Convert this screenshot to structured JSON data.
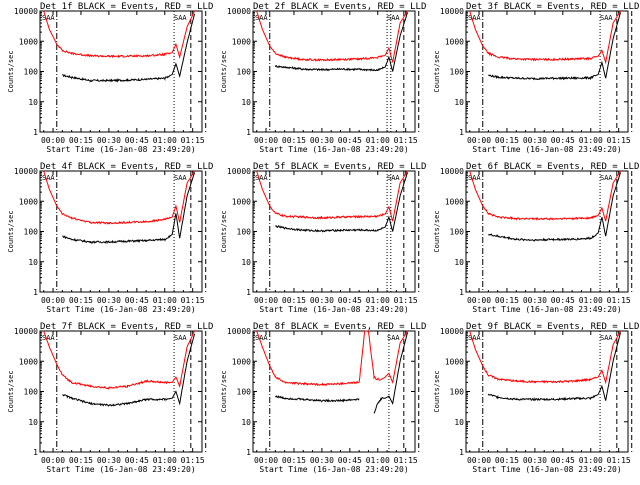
{
  "colors": {
    "events": "#000000",
    "lld": "#ff0000",
    "axis": "#000000"
  },
  "chart_data": [
    {
      "type": "line",
      "title": "Det 1f BLACK = Events, RED = LLD",
      "xlabel": "Start Time (16-Jan-08 23:49:20)",
      "ylabel": "Counts/sec",
      "yscale": "log",
      "ylim": [
        1,
        10000
      ],
      "xticks": [
        "00:00",
        "00:15",
        "00:30",
        "00:45",
        "01:00",
        "01:15"
      ],
      "yticks": [
        "1",
        "10",
        "100",
        "1000",
        "10000"
      ],
      "x": [
        -5,
        -2,
        2,
        5,
        10,
        20,
        30,
        40,
        50,
        60,
        64,
        66,
        68,
        72,
        76
      ],
      "series": [
        {
          "name": "BLACK = Events",
          "values": [
            null,
            null,
            null,
            75,
            65,
            50,
            50,
            52,
            55,
            60,
            80,
            180,
            70,
            900,
            8000
          ]
        },
        {
          "name": "RED = LLD",
          "values": [
            10000,
            2500,
            800,
            500,
            400,
            330,
            320,
            320,
            330,
            370,
            420,
            800,
            300,
            3000,
            10000
          ]
        }
      ],
      "markers": {
        "dashdot": [
          2
        ],
        "dotted": [
          65
        ],
        "dashed": [
          74,
          82
        ],
        "saa_labels": [
          "SAA",
          "SAA"
        ]
      }
    },
    {
      "type": "line",
      "title": "Det 2f BLACK = Events, RED = LLD",
      "xlabel": "Start Time (16-Jan-08 23:49:20)",
      "ylabel": "Counts/sec",
      "yscale": "log",
      "ylim": [
        1,
        10000
      ],
      "xticks": [
        "00:00",
        "00:15",
        "00:30",
        "00:45",
        "01:00",
        "01:15"
      ],
      "yticks": [
        "1",
        "10",
        "100",
        "1000",
        "10000"
      ],
      "x": [
        -5,
        -2,
        2,
        5,
        10,
        20,
        30,
        40,
        50,
        60,
        64,
        66,
        68,
        72,
        76
      ],
      "series": [
        {
          "name": "BLACK = Events",
          "values": [
            null,
            null,
            null,
            150,
            140,
            120,
            115,
            120,
            118,
            110,
            140,
            300,
            100,
            1500,
            9000
          ]
        },
        {
          "name": "RED = LLD",
          "values": [
            10000,
            2500,
            700,
            400,
            300,
            250,
            240,
            250,
            260,
            290,
            340,
            600,
            200,
            4000,
            10000
          ]
        }
      ],
      "markers": {
        "dashdot": [
          2
        ],
        "dotted": [
          65,
          67
        ],
        "dashed": [
          74,
          82
        ],
        "saa_labels": [
          "SAA",
          "SAA"
        ]
      }
    },
    {
      "type": "line",
      "title": "Det 3f BLACK = Events, RED = LLD",
      "xlabel": "Start Time (16-Jan-08 23:49:20)",
      "ylabel": "Counts/sec",
      "yscale": "log",
      "ylim": [
        1,
        10000
      ],
      "xticks": [
        "00:00",
        "00:15",
        "00:30",
        "00:45",
        "01:00",
        "01:15"
      ],
      "yticks": [
        "1",
        "10",
        "100",
        "1000",
        "10000"
      ],
      "x": [
        -5,
        -2,
        2,
        5,
        10,
        20,
        30,
        40,
        50,
        60,
        64,
        66,
        68,
        72,
        76
      ],
      "series": [
        {
          "name": "BLACK = Events",
          "values": [
            null,
            null,
            null,
            75,
            65,
            60,
            58,
            60,
            60,
            62,
            80,
            200,
            60,
            1200,
            9000
          ]
        },
        {
          "name": "RED = LLD",
          "values": [
            10000,
            2500,
            700,
            400,
            300,
            260,
            250,
            250,
            260,
            270,
            320,
            500,
            200,
            4000,
            10000
          ]
        }
      ],
      "markers": {
        "dashdot": [
          2
        ],
        "dotted": [
          65
        ],
        "dashed": [
          74,
          82
        ],
        "saa_labels": [
          "SAA",
          "SAA"
        ]
      }
    },
    {
      "type": "line",
      "title": "Det 4f BLACK = Events, RED = LLD",
      "xlabel": "Start Time (16-Jan-08 23:49:20)",
      "ylabel": "Counts/sec",
      "yscale": "log",
      "ylim": [
        1,
        10000
      ],
      "xticks": [
        "00:00",
        "00:15",
        "00:30",
        "00:45",
        "01:00",
        "01:15"
      ],
      "yticks": [
        "1",
        "10",
        "100",
        "1000",
        "10000"
      ],
      "x": [
        -5,
        -2,
        2,
        5,
        10,
        20,
        30,
        40,
        50,
        60,
        64,
        66,
        68,
        72,
        76
      ],
      "series": [
        {
          "name": "BLACK = Events",
          "values": [
            null,
            null,
            null,
            70,
            55,
            45,
            45,
            48,
            50,
            55,
            80,
            400,
            60,
            1500,
            9000
          ]
        },
        {
          "name": "RED = LLD",
          "values": [
            10000,
            2500,
            700,
            380,
            280,
            200,
            190,
            200,
            210,
            250,
            300,
            700,
            200,
            4000,
            10000
          ]
        }
      ],
      "markers": {
        "dashdot": [
          2
        ],
        "dotted": [
          65
        ],
        "dashed": [
          74,
          82
        ],
        "saa_labels": [
          "SAA",
          "SAA"
        ]
      }
    },
    {
      "type": "line",
      "title": "Det 5f BLACK = Events, RED = LLD",
      "xlabel": "Start Time (16-Jan-08 23:49:20)",
      "ylabel": "Counts/sec",
      "yscale": "log",
      "ylim": [
        1,
        10000
      ],
      "xticks": [
        "00:00",
        "00:15",
        "00:30",
        "00:45",
        "01:00",
        "01:15"
      ],
      "yticks": [
        "1",
        "10",
        "100",
        "1000",
        "10000"
      ],
      "x": [
        -5,
        -2,
        2,
        5,
        10,
        20,
        30,
        40,
        50,
        60,
        64,
        66,
        68,
        72,
        76
      ],
      "series": [
        {
          "name": "BLACK = Events",
          "values": [
            null,
            null,
            null,
            150,
            130,
            110,
            105,
            110,
            112,
            108,
            140,
            300,
            100,
            1500,
            9000
          ]
        },
        {
          "name": "RED = LLD",
          "values": [
            10000,
            2500,
            700,
            400,
            320,
            300,
            280,
            300,
            310,
            320,
            380,
            650,
            220,
            4000,
            10000
          ]
        }
      ],
      "markers": {
        "dashdot": [
          2
        ],
        "dotted": [
          65,
          67
        ],
        "dashed": [
          74,
          82
        ],
        "saa_labels": [
          "SAA",
          "SAA"
        ]
      }
    },
    {
      "type": "line",
      "title": "Det 6f BLACK = Events, RED = LLD",
      "xlabel": "Start Time (16-Jan-08 23:49:20)",
      "ylabel": "Counts/sec",
      "yscale": "log",
      "ylim": [
        1,
        10000
      ],
      "xticks": [
        "00:00",
        "00:15",
        "00:30",
        "00:45",
        "01:00",
        "01:15"
      ],
      "yticks": [
        "1",
        "10",
        "100",
        "1000",
        "10000"
      ],
      "x": [
        -5,
        -2,
        2,
        5,
        10,
        20,
        30,
        40,
        50,
        60,
        64,
        66,
        68,
        72,
        76
      ],
      "series": [
        {
          "name": "BLACK = Events",
          "values": [
            null,
            null,
            null,
            80,
            70,
            55,
            52,
            55,
            55,
            60,
            90,
            300,
            70,
            1500,
            9000
          ]
        },
        {
          "name": "RED = LLD",
          "values": [
            10000,
            2500,
            700,
            400,
            300,
            270,
            260,
            260,
            270,
            280,
            340,
            600,
            220,
            4000,
            10000
          ]
        }
      ],
      "markers": {
        "dashdot": [
          2
        ],
        "dotted": [
          65
        ],
        "dashed": [
          74,
          82
        ],
        "saa_labels": [
          "SAA",
          "SAA"
        ]
      }
    },
    {
      "type": "line",
      "title": "Det 7f BLACK = Events, RED = LLD",
      "xlabel": "Start Time (16-Jan-08 23:49:20)",
      "ylabel": "Counts/sec",
      "yscale": "log",
      "ylim": [
        1,
        10000
      ],
      "xticks": [
        "00:00",
        "00:15",
        "00:30",
        "00:45",
        "01:00",
        "01:15"
      ],
      "yticks": [
        "1",
        "10",
        "100",
        "1000",
        "10000"
      ],
      "x": [
        -5,
        -2,
        2,
        5,
        10,
        20,
        30,
        40,
        50,
        60,
        64,
        66,
        68,
        72,
        76
      ],
      "series": [
        {
          "name": "BLACK = Events",
          "values": [
            null,
            null,
            null,
            80,
            60,
            40,
            35,
            40,
            55,
            55,
            60,
            100,
            40,
            1000,
            8000
          ]
        },
        {
          "name": "RED = LLD",
          "values": [
            10000,
            3000,
            800,
            350,
            200,
            150,
            130,
            150,
            220,
            200,
            200,
            300,
            150,
            3000,
            10000
          ]
        }
      ],
      "markers": {
        "dashdot": [
          2
        ],
        "dotted": [
          65
        ],
        "dashed": [
          74,
          82
        ],
        "saa_labels": [
          "SAA",
          "SAA"
        ]
      }
    },
    {
      "type": "line",
      "title": "Det 8f BLACK = Events, RED = LLD",
      "xlabel": "Start Time (16-Jan-08 23:49:20)",
      "ylabel": "Counts/sec",
      "yscale": "log",
      "ylim": [
        1,
        10000
      ],
      "xticks": [
        "00:00",
        "00:15",
        "00:30",
        "00:45",
        "01:00",
        "01:15"
      ],
      "yticks": [
        "1",
        "10",
        "100",
        "1000",
        "10000"
      ],
      "x": [
        -5,
        -2,
        2,
        5,
        10,
        20,
        30,
        40,
        50,
        53,
        55,
        58,
        60,
        62,
        64,
        66,
        68,
        72,
        76
      ],
      "series": [
        {
          "name": "BLACK = Events",
          "values": [
            null,
            null,
            null,
            70,
            60,
            55,
            50,
            50,
            55,
            null,
            null,
            20,
            40,
            60,
            60,
            70,
            40,
            1000,
            9000
          ]
        },
        {
          "name": "RED = LLD",
          "values": [
            10000,
            3000,
            700,
            300,
            200,
            180,
            170,
            180,
            200,
            10000,
            10000,
            300,
            250,
            250,
            300,
            400,
            200,
            4000,
            10000
          ]
        }
      ],
      "markers": {
        "dashdot": [
          2
        ],
        "dotted": [
          66
        ],
        "dashed": [
          74,
          82
        ],
        "saa_labels": [
          "SAA",
          "SAA"
        ]
      }
    },
    {
      "type": "line",
      "title": "Det 9f BLACK = Events, RED = LLD",
      "xlabel": "Start Time (16-Jan-08 23:49:20)",
      "ylabel": "Counts/sec",
      "yscale": "log",
      "ylim": [
        1,
        10000
      ],
      "xticks": [
        "00:00",
        "00:15",
        "00:30",
        "00:45",
        "01:00",
        "01:15"
      ],
      "yticks": [
        "1",
        "10",
        "100",
        "1000",
        "10000"
      ],
      "x": [
        -5,
        -2,
        2,
        5,
        10,
        20,
        30,
        40,
        50,
        60,
        64,
        66,
        68,
        72,
        76
      ],
      "series": [
        {
          "name": "BLACK = Events",
          "values": [
            null,
            null,
            null,
            80,
            65,
            55,
            55,
            55,
            58,
            60,
            80,
            150,
            50,
            1000,
            9000
          ]
        },
        {
          "name": "RED = LLD",
          "values": [
            10000,
            2500,
            700,
            350,
            260,
            220,
            210,
            210,
            220,
            250,
            300,
            500,
            200,
            3500,
            10000
          ]
        }
      ],
      "markers": {
        "dashdot": [
          2
        ],
        "dotted": [
          65
        ],
        "dashed": [
          74,
          82
        ],
        "saa_labels": [
          "SAA",
          "SAA"
        ]
      }
    }
  ]
}
